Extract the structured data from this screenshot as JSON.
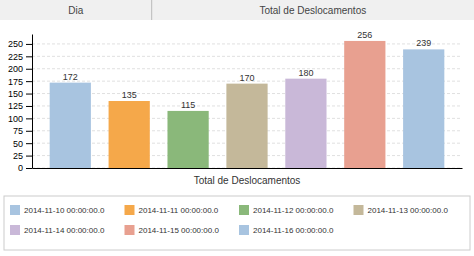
{
  "chart_data": {
    "type": "bar",
    "annotations": [
      "Dia",
      "Total de Deslocamentos"
    ],
    "xlabel": "Total de Deslocamentos",
    "categories": [
      "2014-11-10 00:00:00.0",
      "2014-11-11 00:00:00.0",
      "2014-11-12 00:00:00.0",
      "2014-11-13 00:00:00.0",
      "2014-11-14 00:00:00.0",
      "2014-11-15 00:00:00.0",
      "2014-11-16 00:00:00.0"
    ],
    "values": [
      172,
      135,
      115,
      170,
      180,
      256,
      239
    ],
    "colors": [
      "#a8c4e0",
      "#f5a84a",
      "#8ab87a",
      "#c4b89a",
      "#c9b8d8",
      "#e8a090",
      "#a8c4e0"
    ],
    "ylim": [
      0,
      270
    ],
    "yticks": [
      0,
      25,
      50,
      75,
      100,
      125,
      150,
      175,
      200,
      225,
      250
    ],
    "grid": true,
    "data_labels": true,
    "tick_labels": "y",
    "legend": "bottom"
  }
}
